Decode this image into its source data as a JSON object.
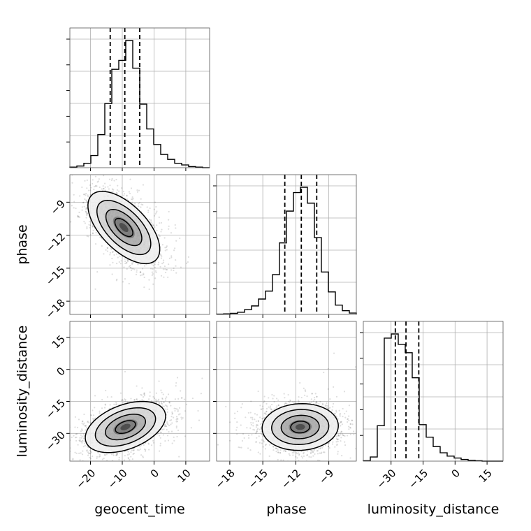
{
  "chart_data": {
    "type": "corner",
    "parameters": [
      "geocent_time",
      "phase",
      "luminosity_distance"
    ],
    "ranges": {
      "geocent_time": [
        -26.5,
        17.5
      ],
      "phase": [
        -19.2,
        -6.5
      ],
      "luminosity_distance": [
        -43.0,
        22.5
      ]
    },
    "ticks": {
      "geocent_time": [
        -20,
        -10,
        0,
        10
      ],
      "phase": [
        -18,
        -15,
        -12,
        -9
      ],
      "luminosity_distance": [
        -30,
        -15,
        0,
        15
      ]
    },
    "tick_labels": {
      "geocent_time": [
        "−20",
        "−10",
        "0",
        "10"
      ],
      "phase": [
        "−18",
        "−15",
        "−12",
        "−9"
      ],
      "luminosity_distance": [
        "−30",
        "−15",
        "0",
        "15"
      ]
    },
    "grid": true,
    "quantiles": {
      "geocent_time": [
        -13.8,
        -9.2,
        -4.5
      ],
      "phase": [
        -13.0,
        -11.5,
        -10.1
      ],
      "luminosity_distance": [
        -28.0,
        -23.0,
        -17.0
      ]
    },
    "histograms": {
      "geocent_time": {
        "edges": [
          -26.5,
          -24.3,
          -22.1,
          -19.9,
          -17.7,
          -15.5,
          -13.3,
          -11.1,
          -8.9,
          -6.7,
          -4.5,
          -2.3,
          -0.1,
          2.1,
          4.3,
          6.5,
          8.7,
          10.9,
          13.1,
          15.3,
          17.5
        ],
        "counts": [
          1,
          3,
          8,
          22,
          60,
          116,
          178,
          194,
          230,
          180,
          115,
          70,
          42,
          24,
          15,
          8,
          5,
          2,
          1,
          0
        ]
      },
      "phase": {
        "edges": [
          -19.2,
          -18.565,
          -17.93,
          -17.295,
          -16.66,
          -16.025,
          -15.39,
          -14.755,
          -14.12,
          -13.485,
          -12.85,
          -12.215,
          -11.58,
          -10.945,
          -10.31,
          -9.675,
          -9.04,
          -8.405,
          -7.77,
          -7.135,
          -6.5
        ],
        "counts": [
          1,
          2,
          4,
          8,
          18,
          32,
          58,
          88,
          150,
          270,
          390,
          460,
          480,
          420,
          290,
          160,
          85,
          35,
          14,
          5
        ]
      },
      "luminosity_distance": {
        "edges": [
          -43.0,
          -39.725,
          -36.45,
          -33.175,
          -29.9,
          -26.625,
          -23.35,
          -20.075,
          -16.8,
          -13.525,
          -10.25,
          -6.975,
          -3.7,
          -0.425,
          2.85,
          6.125,
          9.4,
          12.675,
          15.95,
          19.225,
          22.5
        ],
        "counts": [
          2,
          20,
          170,
          590,
          610,
          560,
          520,
          400,
          175,
          115,
          70,
          40,
          24,
          15,
          8,
          4,
          2,
          0,
          0,
          0
        ]
      }
    },
    "pairs": [
      {
        "x": "geocent_time",
        "y": "phase",
        "mean": [
          -9.5,
          -11.3
        ],
        "cov": [
          [
            32,
            -5.6
          ],
          [
            -5.6,
            2.7
          ]
        ],
        "levels": [
          0.5,
          1.0,
          1.5,
          2.0
        ]
      },
      {
        "x": "geocent_time",
        "y": "luminosity_distance",
        "mean": [
          -9.0,
          -27.0
        ],
        "cov": [
          [
            40,
            16
          ],
          [
            16,
            36
          ]
        ],
        "levels": [
          0.5,
          1.0,
          1.5,
          2.0
        ]
      },
      {
        "x": "phase",
        "y": "luminosity_distance",
        "mean": [
          -11.6,
          -27.0
        ],
        "cov": [
          [
            3.0,
            0.5
          ],
          [
            0.5,
            30
          ]
        ],
        "levels": [
          0.5,
          1.0,
          1.5,
          2.0
        ]
      }
    ],
    "samples_per_panel": 2200
  }
}
